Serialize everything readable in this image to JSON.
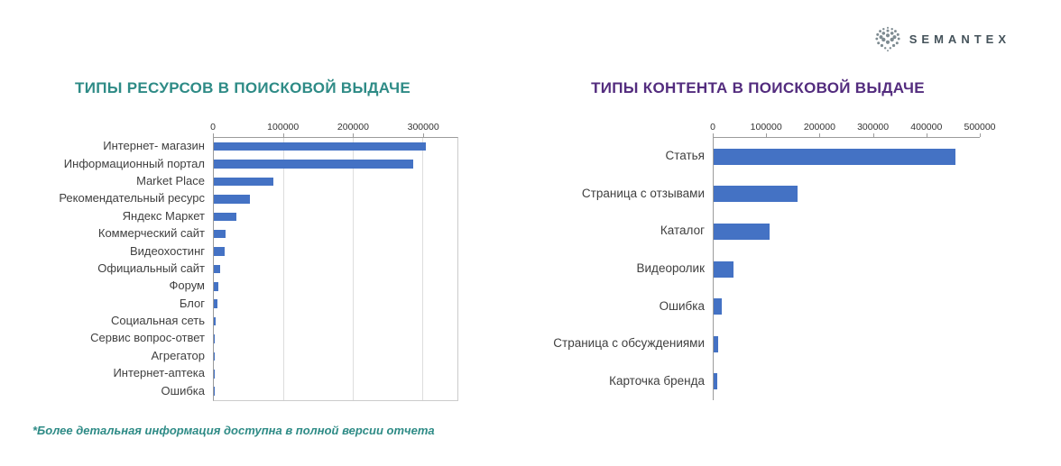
{
  "logo": {
    "text": "SEMANTEX"
  },
  "footnote": "*Более детальная информация доступна в полной версии отчета",
  "footnote_color": "#2e8b86",
  "chart_data": [
    {
      "type": "bar",
      "orientation": "horizontal",
      "title": "ТИПЫ РЕСУРСОВ В ПОИСКОВОЙ ВЫДАЧЕ",
      "title_color": "#2e8b86",
      "bar_color": "#4472c4",
      "grid": true,
      "legend": false,
      "xlim": [
        0,
        350000
      ],
      "xticks": [
        0,
        100000,
        200000,
        300000
      ],
      "categories": [
        "Интернет- магазин",
        "Информационный портал",
        "Market Place",
        "Рекомендательный ресурс",
        "Яндекс Маркет",
        "Коммерческий сайт",
        "Видеохостинг",
        "Официальный сайт",
        "Форум",
        "Блог",
        "Социальная сеть",
        "Сервис вопрос-ответ",
        "Агрегатор",
        "Интернет-аптека",
        "Ошибка"
      ],
      "values": [
        305000,
        287000,
        86000,
        52000,
        33000,
        17000,
        15000,
        9000,
        6000,
        5000,
        2500,
        1500,
        800,
        500,
        300
      ]
    },
    {
      "type": "bar",
      "orientation": "horizontal",
      "title": "ТИПЫ КОНТЕНТА В ПОИСКОВОЙ ВЫДАЧЕ",
      "title_color": "#532c7e",
      "bar_color": "#4472c4",
      "grid": false,
      "legend": false,
      "xlim": [
        0,
        500000
      ],
      "xticks": [
        0,
        100000,
        200000,
        300000,
        400000,
        500000
      ],
      "categories": [
        "Статья",
        "Страница с отзывами",
        "Каталог",
        "Видеоролик",
        "Ошибка",
        "Страница с обсуждениями",
        "Карточка бренда"
      ],
      "values": [
        455000,
        157000,
        105000,
        38000,
        15000,
        8000,
        6000
      ]
    }
  ]
}
